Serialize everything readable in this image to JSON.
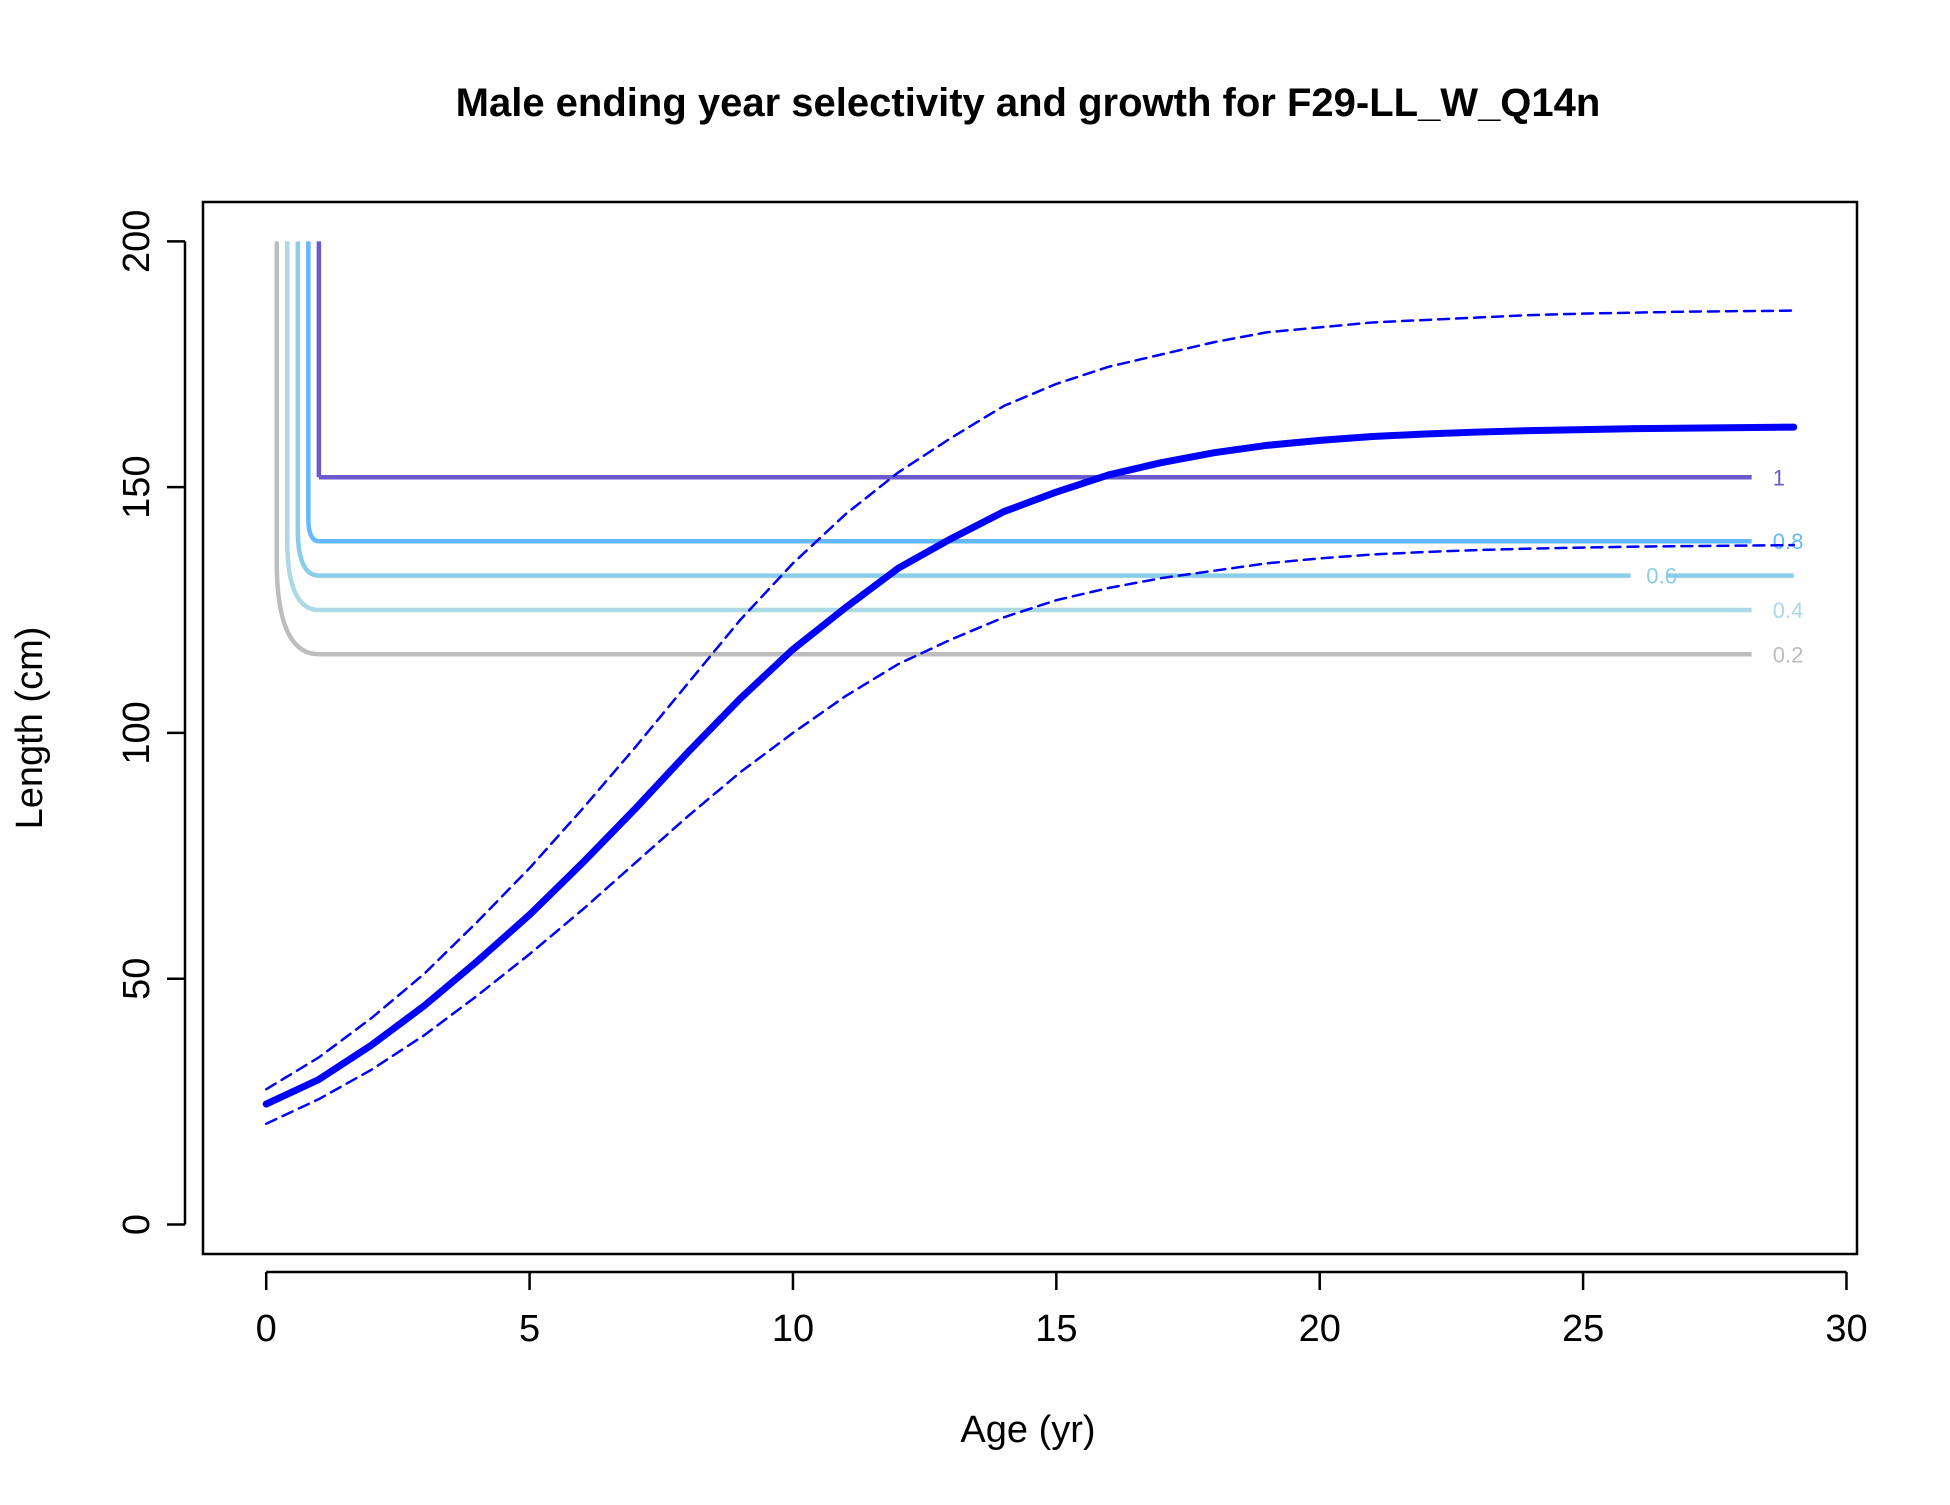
{
  "chart_data": {
    "type": "line",
    "title": "Male ending year selectivity and growth for F29-LL_W_Q14n",
    "xlabel": "Age (yr)",
    "ylabel": "Length (cm)",
    "xlim": [
      -1.2,
      30.2
    ],
    "ylim": [
      -6,
      208
    ],
    "xticks": [
      0,
      5,
      10,
      15,
      20,
      25,
      30
    ],
    "yticks": [
      0,
      50,
      100,
      150,
      200
    ],
    "grid": false,
    "legend": "none",
    "growth_curve": {
      "color": "#0000ff",
      "style": "solid",
      "x": [
        0,
        1,
        2,
        3,
        4,
        5,
        6,
        7,
        8,
        9,
        10,
        11,
        12,
        13,
        14,
        15,
        16,
        17,
        18,
        19,
        20,
        21,
        22,
        23,
        24,
        25,
        26,
        27,
        28,
        29
      ],
      "y": [
        24.5,
        29.5,
        36.5,
        44.5,
        53.5,
        63,
        73.5,
        84.5,
        96,
        107,
        117,
        125.5,
        133.5,
        139.5,
        145,
        149,
        152.5,
        155,
        157,
        158.5,
        159.5,
        160.3,
        160.8,
        161.2,
        161.5,
        161.7,
        161.9,
        162,
        162.1,
        162.2
      ]
    },
    "upper_interval": {
      "color": "#0000ff",
      "style": "dashed",
      "x": [
        0,
        1,
        2,
        3,
        4,
        5,
        6,
        7,
        8,
        9,
        10,
        11,
        12,
        13,
        14,
        15,
        16,
        17,
        18,
        19,
        20,
        21,
        22,
        23,
        24,
        25,
        26,
        27,
        28,
        29
      ],
      "y": [
        27.5,
        34,
        42,
        51,
        61.5,
        72.5,
        84.5,
        97,
        110,
        123,
        134.5,
        144.5,
        153,
        160,
        166.5,
        171,
        174.5,
        177,
        179.5,
        181.5,
        182.5,
        183.5,
        184,
        184.5,
        185,
        185.3,
        185.5,
        185.7,
        185.8,
        185.9
      ]
    },
    "lower_interval": {
      "color": "#0000ff",
      "style": "dashed",
      "x": [
        0,
        1,
        2,
        3,
        4,
        5,
        6,
        7,
        8,
        9,
        10,
        11,
        12,
        13,
        14,
        15,
        16,
        17,
        18,
        19,
        20,
        21,
        22,
        23,
        24,
        25,
        26,
        27,
        28,
        29
      ],
      "y": [
        20.5,
        25.5,
        31.5,
        38.5,
        46.5,
        55,
        64,
        73.5,
        83,
        92,
        100,
        107.5,
        114,
        119,
        123.5,
        127,
        129.5,
        131.5,
        133,
        134.5,
        135.5,
        136.3,
        136.8,
        137.2,
        137.5,
        137.7,
        137.9,
        138,
        138.1,
        138.2
      ]
    },
    "selectivity_contours": [
      {
        "level": "0.2",
        "color": "#bdbdbd",
        "knee_age": 1.0,
        "length": 116,
        "top_age": 0.2,
        "end_age": 28.2,
        "label_age": 28.6
      },
      {
        "level": "0.4",
        "color": "#add8e6",
        "knee_age": 1.0,
        "length": 125,
        "top_age": 0.4,
        "end_age": 28.2,
        "label_age": 28.6
      },
      {
        "level": "0.6",
        "color": "#87ceeb",
        "knee_age": 1.0,
        "length": 132,
        "top_age": 0.6,
        "end_age": 29.0,
        "label_age": 26.2,
        "label_gap": [
          25.9,
          26.6
        ]
      },
      {
        "level": "0.8",
        "color": "#63b8ff",
        "knee_age": 1.0,
        "length": 139,
        "top_age": 0.8,
        "end_age": 28.2,
        "label_age": 28.6
      },
      {
        "level": "1",
        "color": "#6a5acd",
        "knee_age": 1.0,
        "length": 152,
        "top_age": 1.0,
        "end_age": 28.2,
        "label_age": 28.6
      }
    ],
    "contour_top": 200
  }
}
